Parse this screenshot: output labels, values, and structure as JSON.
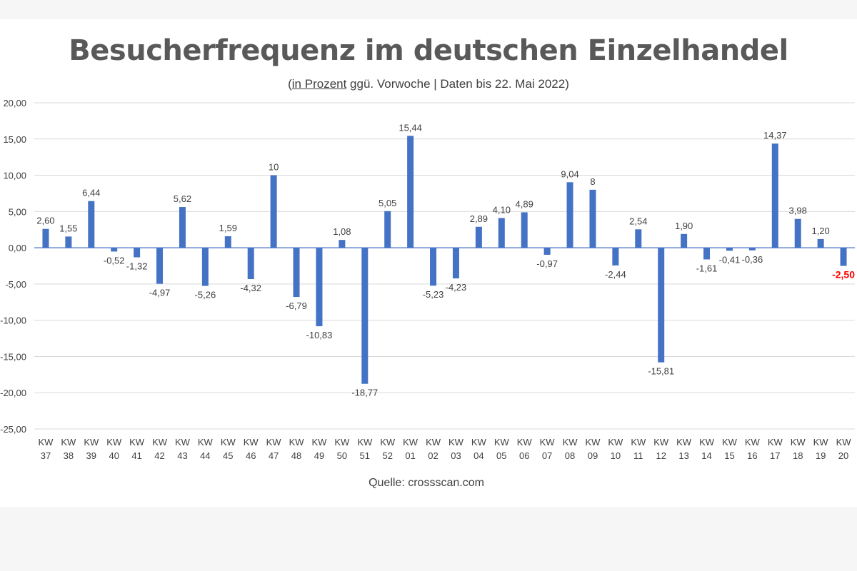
{
  "title": "Besucherfrequenz im deutschen Einzelhandel",
  "subtitle": {
    "open": "(",
    "underlined": "in Prozent",
    "rest": " ggü. Vorwoche | Daten bis 22. Mai 2022)"
  },
  "source": "Quelle: crossscan.com",
  "chart_data": {
    "type": "bar",
    "title": "Besucherfrequenz im deutschen Einzelhandel",
    "categories": [
      "KW 37",
      "KW 38",
      "KW 39",
      "KW 40",
      "KW 41",
      "KW 42",
      "KW 43",
      "KW 44",
      "KW 45",
      "KW 46",
      "KW 47",
      "KW 48",
      "KW 49",
      "KW 50",
      "KW 51",
      "KW 52",
      "KW 01",
      "KW 02",
      "KW 03",
      "KW 04",
      "KW 05",
      "KW 06",
      "KW 07",
      "KW 08",
      "KW 09",
      "KW 10",
      "KW 11",
      "KW 12",
      "KW 13",
      "KW 14",
      "KW 15",
      "KW 16",
      "KW 17",
      "KW 18",
      "KW 19",
      "KW 20"
    ],
    "values": [
      2.6,
      1.55,
      6.44,
      -0.52,
      -1.32,
      -4.97,
      5.62,
      -5.26,
      1.59,
      -4.32,
      10,
      -6.79,
      -10.83,
      1.08,
      -18.77,
      5.05,
      15.44,
      -5.23,
      -4.23,
      2.89,
      4.1,
      4.89,
      -0.97,
      9.04,
      8,
      -2.44,
      2.54,
      -15.81,
      1.9,
      -1.61,
      -0.41,
      -0.36,
      14.37,
      3.98,
      1.2,
      -2.5
    ],
    "data_labels": [
      "2,60",
      "1,55",
      "6,44",
      "-0,52",
      "-1,32",
      "-4,97",
      "5,62",
      "-5,26",
      "1,59",
      "-4,32",
      "10",
      "-6,79",
      "-10,83",
      "1,08",
      "-18,77",
      "5,05",
      "15,44",
      "-5,23",
      "-4,23",
      "2,89",
      "4,10",
      "4,89",
      "-0,97",
      "9,04",
      "8",
      "-2,44",
      "2,54",
      "-15,81",
      "1,90",
      "-1,61",
      "-0,41",
      "-0,36",
      "14,37",
      "3,98",
      "1,20",
      "-2,50"
    ],
    "highlight_index": 35,
    "ylim": [
      -25,
      20
    ],
    "yticks": [
      20,
      15,
      10,
      5,
      0,
      -5,
      -10,
      -15,
      -20,
      -25
    ],
    "ytick_labels": [
      "20,00",
      "15,00",
      "10,00",
      "5,00",
      "0,00",
      "-5,00",
      "-10,00",
      "-15,00",
      "-20,00",
      "-25,00"
    ],
    "grid": true,
    "legend": "none",
    "colors": {
      "bar": "#4472c4",
      "grid": "#d9d9d9",
      "zero_line": "#4472c4",
      "highlight_label": "#ff0000",
      "text": "#404040"
    }
  }
}
